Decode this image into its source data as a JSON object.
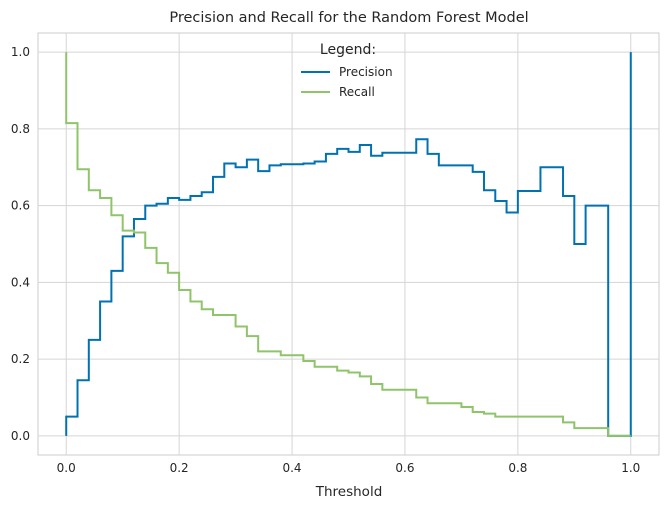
{
  "chart_data": {
    "type": "line",
    "step": "post",
    "title": "Precision and Recall for the Random Forest Model",
    "xlabel": "Threshold",
    "ylabel": "",
    "xlim": [
      -0.05,
      1.05
    ],
    "ylim": [
      -0.05,
      1.05
    ],
    "xticks": [
      0.0,
      0.2,
      0.4,
      0.6,
      0.8,
      1.0
    ],
    "xtick_labels": [
      "0.0",
      "0.2",
      "0.4",
      "0.6",
      "0.8",
      "1.0"
    ],
    "yticks": [
      0.0,
      0.2,
      0.4,
      0.6,
      0.8,
      1.0
    ],
    "ytick_labels": [
      "0.0",
      "0.2",
      "0.4",
      "0.6",
      "0.8",
      "1.0"
    ],
    "grid": true,
    "legend": {
      "title": "Legend:",
      "placement": "upper-center"
    },
    "series": [
      {
        "name": "Precision",
        "color": "#0072B2",
        "x": [
          0.0,
          0.02,
          0.04,
          0.06,
          0.08,
          0.1,
          0.12,
          0.14,
          0.16,
          0.18,
          0.2,
          0.22,
          0.24,
          0.26,
          0.28,
          0.3,
          0.32,
          0.34,
          0.36,
          0.38,
          0.4,
          0.42,
          0.44,
          0.46,
          0.48,
          0.5,
          0.52,
          0.54,
          0.56,
          0.58,
          0.6,
          0.62,
          0.64,
          0.66,
          0.68,
          0.7,
          0.72,
          0.74,
          0.76,
          0.78,
          0.8,
          0.82,
          0.84,
          0.86,
          0.88,
          0.9,
          0.92,
          0.94,
          0.96,
          0.98,
          1.0
        ],
        "values": [
          0.05,
          0.145,
          0.25,
          0.35,
          0.43,
          0.52,
          0.565,
          0.6,
          0.605,
          0.62,
          0.615,
          0.625,
          0.635,
          0.675,
          0.71,
          0.7,
          0.72,
          0.69,
          0.705,
          0.708,
          0.708,
          0.71,
          0.715,
          0.735,
          0.748,
          0.74,
          0.758,
          0.73,
          0.738,
          0.738,
          0.738,
          0.773,
          0.735,
          0.705,
          0.705,
          0.705,
          0.688,
          0.64,
          0.612,
          0.582,
          0.638,
          0.638,
          0.7,
          0.7,
          0.625,
          0.5,
          0.6,
          0.6,
          0.0,
          0.0,
          1.0
        ]
      },
      {
        "name": "Recall",
        "color": "#8FC46A",
        "x": [
          0.0,
          0.02,
          0.04,
          0.06,
          0.08,
          0.1,
          0.12,
          0.14,
          0.16,
          0.18,
          0.2,
          0.22,
          0.24,
          0.26,
          0.28,
          0.3,
          0.32,
          0.34,
          0.36,
          0.38,
          0.4,
          0.42,
          0.44,
          0.46,
          0.48,
          0.5,
          0.52,
          0.54,
          0.56,
          0.58,
          0.6,
          0.62,
          0.64,
          0.66,
          0.68,
          0.7,
          0.72,
          0.74,
          0.76,
          0.78,
          0.8,
          0.82,
          0.84,
          0.86,
          0.88,
          0.9,
          0.92,
          0.94,
          0.96,
          0.98,
          1.0
        ],
        "values": [
          0.815,
          0.695,
          0.64,
          0.62,
          0.575,
          0.535,
          0.53,
          0.49,
          0.45,
          0.425,
          0.38,
          0.35,
          0.33,
          0.315,
          0.315,
          0.285,
          0.26,
          0.22,
          0.22,
          0.21,
          0.21,
          0.195,
          0.18,
          0.18,
          0.17,
          0.165,
          0.155,
          0.135,
          0.12,
          0.12,
          0.12,
          0.1,
          0.085,
          0.085,
          0.085,
          0.075,
          0.062,
          0.058,
          0.05,
          0.05,
          0.05,
          0.05,
          0.05,
          0.05,
          0.035,
          0.02,
          0.02,
          0.02,
          0.0,
          0.0,
          0.0
        ]
      }
    ]
  }
}
